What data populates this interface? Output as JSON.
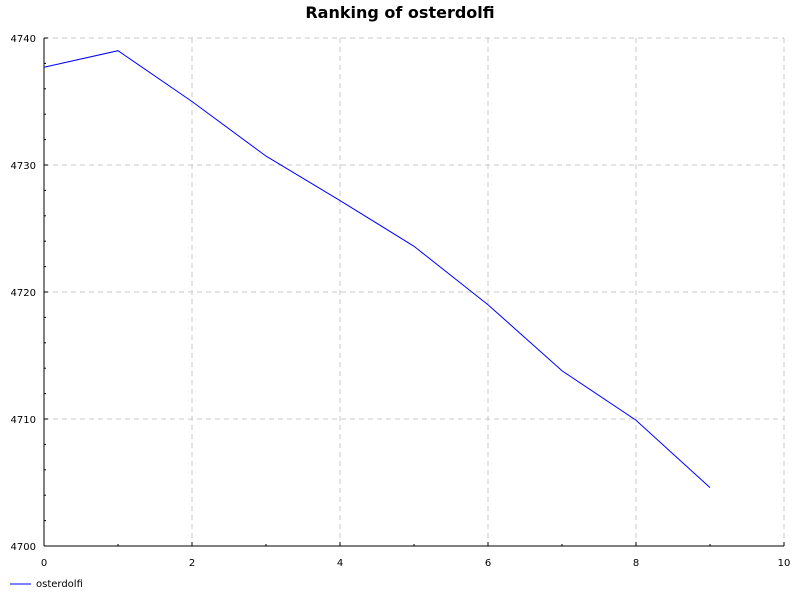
{
  "chart_data": {
    "type": "line",
    "title": "Ranking of osterdolfi",
    "xlabel": "",
    "ylabel": "",
    "xlim": [
      0,
      10
    ],
    "ylim": [
      4700,
      4740
    ],
    "x_ticks": [
      "0",
      "2",
      "4",
      "6",
      "8",
      "10"
    ],
    "y_ticks": [
      "4700",
      "4710",
      "4720",
      "4730",
      "4740"
    ],
    "grid": true,
    "legend_position": "bottom-left",
    "series": [
      {
        "name": "osterdolfi",
        "color": "#0000ff",
        "x": [
          0,
          1,
          2,
          3,
          4,
          5,
          6,
          7,
          8,
          9
        ],
        "y": [
          4737.7,
          4739.0,
          4735.0,
          4730.7,
          4727.2,
          4723.6,
          4719.0,
          4713.8,
          4709.9,
          4704.6
        ]
      }
    ]
  }
}
